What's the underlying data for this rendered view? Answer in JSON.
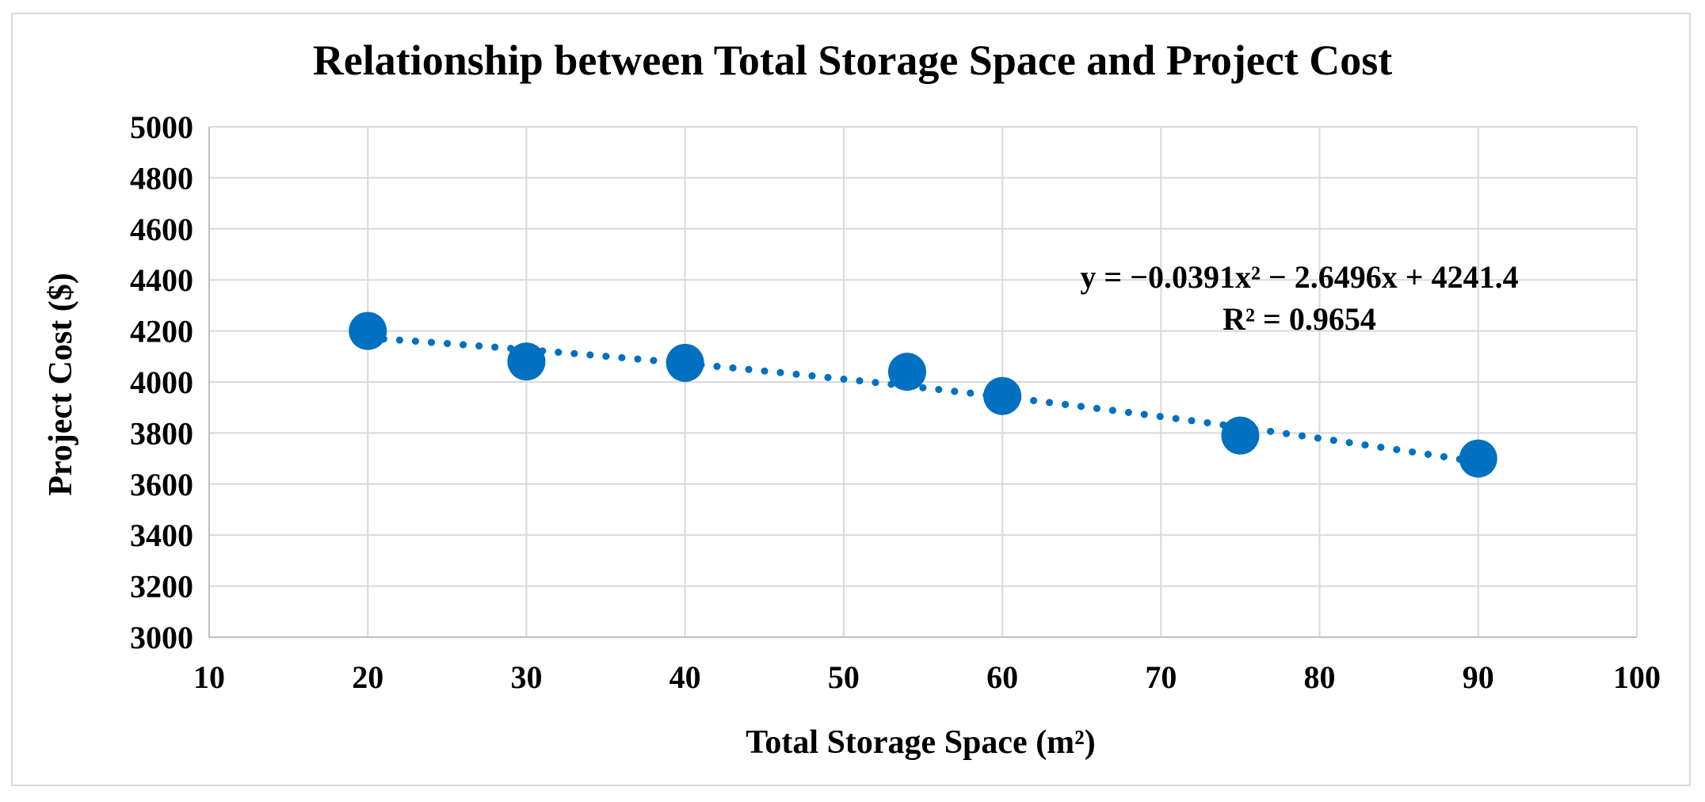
{
  "chart_data": {
    "type": "scatter",
    "title": "Relationship between Total Storage Space and Project Cost",
    "xlabel": "Total Storage Space (m²)",
    "ylabel": "Project Cost ($)",
    "xlim": [
      10,
      100
    ],
    "ylim": [
      3000,
      5000
    ],
    "xticks": [
      10,
      20,
      30,
      40,
      50,
      60,
      70,
      80,
      90,
      100
    ],
    "yticks": [
      3000,
      3200,
      3400,
      3600,
      3800,
      4000,
      4200,
      4400,
      4600,
      4800,
      5000
    ],
    "grid": true,
    "series": [
      {
        "name": "Project Cost",
        "x": [
          20,
          30,
          40,
          54,
          60,
          75,
          90
        ],
        "y": [
          4200,
          4080,
          4075,
          4040,
          3945,
          3790,
          3700
        ]
      }
    ],
    "trendline": {
      "type": "polynomial",
      "order": 2,
      "style": "dotted",
      "x_range": [
        20,
        90
      ],
      "coefficients": {
        "a": -0.0391,
        "b": -2.6496,
        "c": 4241.4
      },
      "equation_label": "y = −0.0391x² − 2.6496x + 4241.4",
      "r2_label": "R² = 0.9654"
    },
    "colors": {
      "marker": "#0070c0",
      "trendline": "#0070c0",
      "grid": "#d9d9d9",
      "text": "#000000"
    }
  }
}
